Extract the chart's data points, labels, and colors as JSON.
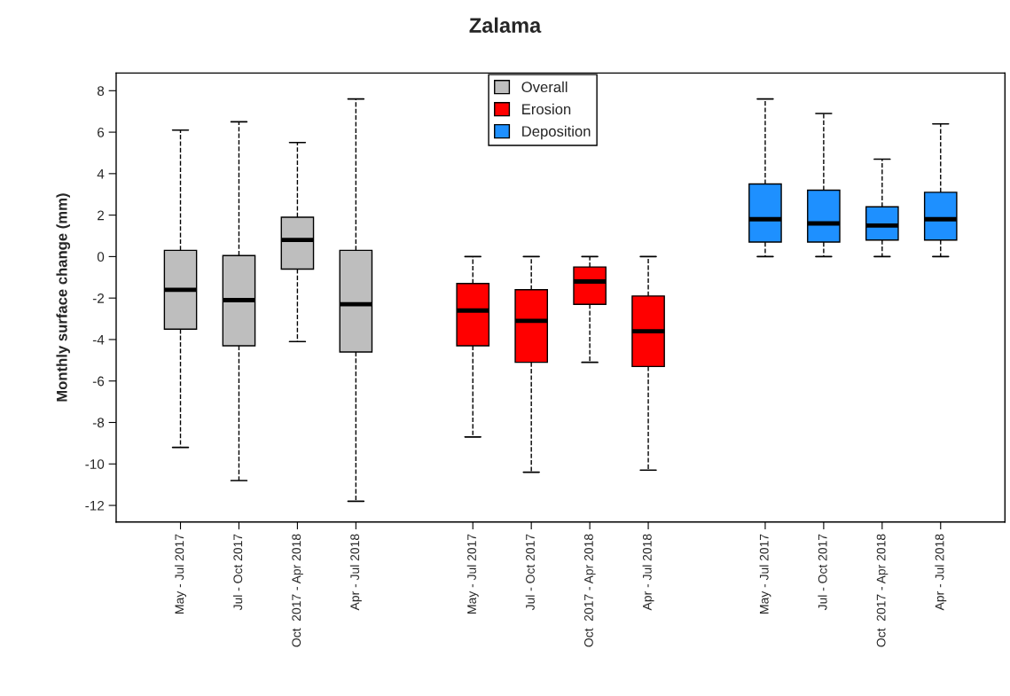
{
  "chart_data": {
    "type": "box",
    "title": "Zalama",
    "ylabel": "Monthly surface change (mm)",
    "categories": [
      "May - Jul 2017",
      "Jul - Oct 2017",
      "Oct  2017 - Apr 2018",
      "Apr - Jul 2018",
      null,
      "May - Jul 2017",
      "Jul - Oct 2017",
      "Oct  2017 - Apr 2018",
      "Apr - Jul 2018",
      null,
      "May - Jul 2017",
      "Jul - Oct 2017",
      "Oct  2017 - Apr 2018",
      "Apr - Jul 2018"
    ],
    "series": [
      {
        "name": "Overall",
        "color": "#bebebe",
        "boxes": [
          {
            "low": -9.2,
            "q1": -3.5,
            "median": -1.6,
            "q3": 0.3,
            "high": 6.1
          },
          {
            "low": -10.8,
            "q1": -4.3,
            "median": -2.1,
            "q3": 0.05,
            "high": 6.5
          },
          {
            "low": -4.1,
            "q1": -0.6,
            "median": 0.8,
            "q3": 1.9,
            "high": 5.5
          },
          {
            "low": -11.8,
            "q1": -4.6,
            "median": -2.3,
            "q3": 0.3,
            "high": 7.6
          },
          null,
          null,
          null,
          null,
          null,
          null,
          null,
          null,
          null,
          null
        ]
      },
      {
        "name": "Erosion",
        "color": "#ff0000",
        "boxes": [
          null,
          null,
          null,
          null,
          null,
          {
            "low": -8.7,
            "q1": -4.3,
            "median": -2.6,
            "q3": -1.3,
            "high": 0
          },
          {
            "low": -10.4,
            "q1": -5.1,
            "median": -3.1,
            "q3": -1.6,
            "high": 0
          },
          {
            "low": -5.1,
            "q1": -2.3,
            "median": -1.2,
            "q3": -0.5,
            "high": 0
          },
          {
            "low": -10.3,
            "q1": -5.3,
            "median": -3.6,
            "q3": -1.9,
            "high": 0
          },
          null,
          null,
          null,
          null,
          null
        ]
      },
      {
        "name": "Deposition",
        "color": "#1e90ff",
        "boxes": [
          null,
          null,
          null,
          null,
          null,
          null,
          null,
          null,
          null,
          null,
          {
            "low": 0,
            "q1": 0.7,
            "median": 1.8,
            "q3": 3.5,
            "high": 7.6
          },
          {
            "low": 0,
            "q1": 0.7,
            "median": 1.6,
            "q3": 3.2,
            "high": 6.9
          },
          {
            "low": 0,
            "q1": 0.8,
            "median": 1.5,
            "q3": 2.4,
            "high": 4.7
          },
          {
            "low": 0,
            "q1": 0.8,
            "median": 1.8,
            "q3": 3.1,
            "high": 6.4
          }
        ]
      }
    ],
    "ylim": [
      -12.8,
      8.85
    ],
    "yticks": [
      -12,
      -10,
      -8,
      -6,
      -4,
      -2,
      0,
      2,
      4,
      6,
      8
    ],
    "grid": false,
    "legend": "top",
    "line_style": "dashed"
  }
}
